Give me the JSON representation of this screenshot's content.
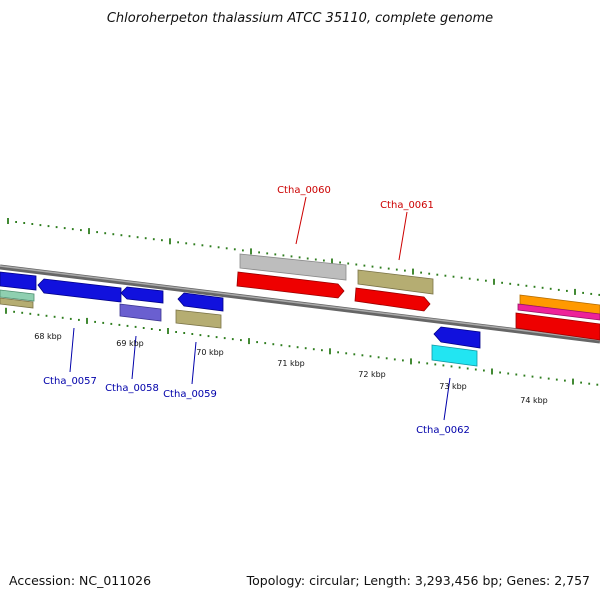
{
  "title": "Chloroherpeton thalassium ATCC 35110, complete genome",
  "footer": {
    "accession": "Accession: NC_011026",
    "summary": "Topology: circular; Length: 3,293,456 bp; Genes: 2,757"
  },
  "colors": {
    "backbone": "#808080",
    "tick": "#2e7d1e",
    "label_forward": "#cc0000",
    "label_reverse": "#0000aa",
    "blue": "#1111dd",
    "slate": "#6a5fd0",
    "khaki": "#b5ad72",
    "silver": "#bdbdbd",
    "red": "#ee0000",
    "cyan": "#22e5f2",
    "orange": "#ff9900",
    "magenta": "#ee2299",
    "teal": "#8fcfb0"
  },
  "kbp_labels": [
    "68 kbp",
    "69 kbp",
    "70 kbp",
    "71 kbp",
    "72 kbp",
    "73 kbp",
    "74 kbp"
  ],
  "gene_labels": [
    "Ctha_0057",
    "Ctha_0058",
    "Ctha_0059",
    "Ctha_0060",
    "Ctha_0061",
    "Ctha_0062"
  ]
}
